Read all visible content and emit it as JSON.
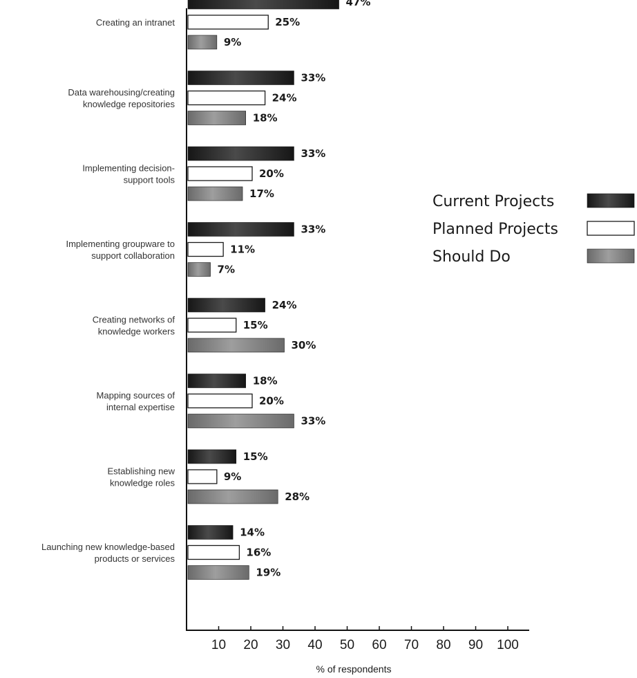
{
  "chart_data": {
    "type": "bar",
    "orientation": "horizontal",
    "categories": [
      [
        "Creating an intranet"
      ],
      [
        "Data warehousing/creating",
        "knowledge repositories"
      ],
      [
        "Implementing decision-",
        "support tools"
      ],
      [
        "Implementing groupware to",
        "support collaboration"
      ],
      [
        "Creating networks of",
        "knowledge workers"
      ],
      [
        "Mapping sources of",
        "internal expertise"
      ],
      [
        "Establishing new",
        "knowledge roles"
      ],
      [
        "Launching new knowledge-based",
        "products or services"
      ]
    ],
    "series": [
      {
        "name": "Current Projects",
        "values": [
          47,
          33,
          33,
          33,
          24,
          18,
          15,
          14
        ],
        "labels": [
          "47%",
          "33%",
          "33%",
          "33%",
          "24%",
          "18%",
          "15%",
          "14%"
        ],
        "color": "#1e1e1e"
      },
      {
        "name": "Planned Projects",
        "values": [
          25,
          24,
          20,
          11,
          15,
          20,
          9,
          16
        ],
        "labels": [
          "25%",
          "24%",
          "20%",
          "11%",
          "15%",
          "20%",
          "9%",
          "16%"
        ],
        "color": "#ffffff"
      },
      {
        "name": "Should Do",
        "values": [
          9,
          18,
          17,
          7,
          30,
          33,
          28,
          19
        ],
        "labels": [
          "9%",
          "18%",
          "17%",
          "7%",
          "30%",
          "33%",
          "28%",
          "19%"
        ],
        "color": "#7a7a7a"
      }
    ],
    "xticks": [
      10,
      20,
      30,
      40,
      50,
      60,
      70,
      80,
      90,
      100
    ],
    "xlim": [
      0,
      100
    ],
    "xlabel": "% of respondents",
    "title": "",
    "grid": false,
    "legend_position": "right"
  }
}
